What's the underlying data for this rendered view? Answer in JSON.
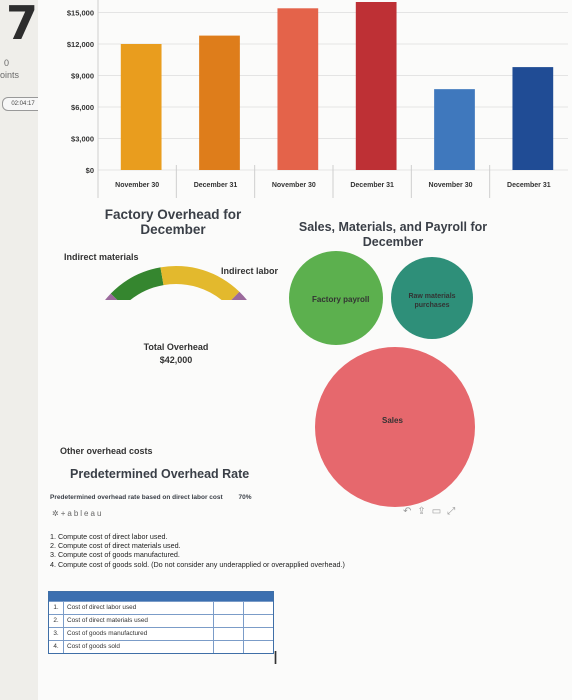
{
  "gutter": {
    "page_number": "7",
    "label_a": "0",
    "label_b": "oints",
    "timer": "02:04:17"
  },
  "chart_data": [
    {
      "type": "bar",
      "title": "",
      "ylim": [
        0,
        16000
      ],
      "yticks": [
        "$15,000",
        "$12,000",
        "$9,000",
        "$6,000",
        "$3,000",
        "$0"
      ],
      "categories": [
        "November 30",
        "December 31",
        "November 30",
        "December 31",
        "November 30",
        "December 31"
      ],
      "values": [
        12000,
        12800,
        15400,
        16000,
        7700,
        9800
      ],
      "colors": [
        "#e99d1e",
        "#de7d1b",
        "#e4634a",
        "#be3035",
        "#3f78bd",
        "#204c95"
      ]
    },
    {
      "type": "pie",
      "title": "Factory Overhead for December",
      "center_label": "Total Overhead",
      "center_value": "$42,000",
      "slices": [
        {
          "name": "Indirect materials",
          "value": 4200,
          "color": "#35862f"
        },
        {
          "name": "Indirect labor",
          "value": 6300,
          "color": "#e3b92d"
        },
        {
          "name": "Other overhead costs",
          "value": 31500,
          "color": "#9b6a9c"
        }
      ]
    },
    {
      "type": "scatter",
      "title": "Sales, Materials, and Payroll for December",
      "bubbles": [
        {
          "name": "Factory payroll",
          "color": "#5cb04e"
        },
        {
          "name": "Raw materials purchases",
          "color": "#2e8f79"
        },
        {
          "name": "Sales",
          "color": "#e6686d"
        }
      ]
    }
  ],
  "predetermined": {
    "heading": "Predetermined Overhead Rate",
    "line": "Predetermined overhead rate based on direct labor cost",
    "value": "70%"
  },
  "brand": "+ableau",
  "questions": [
    "1. Compute cost of direct labor used.",
    "2. Compute cost of direct materials used.",
    "3. Compute cost of goods manufactured.",
    "4. Compute cost of goods sold. (Do not consider any underapplied or overapplied overhead.)"
  ],
  "table_rows": [
    {
      "num": "1.",
      "label": "Cost of direct labor used"
    },
    {
      "num": "2.",
      "label": "Cost of direct materials used"
    },
    {
      "num": "3.",
      "label": "Cost of goods manufactured"
    },
    {
      "num": "4.",
      "label": "Cost of goods sold"
    }
  ]
}
